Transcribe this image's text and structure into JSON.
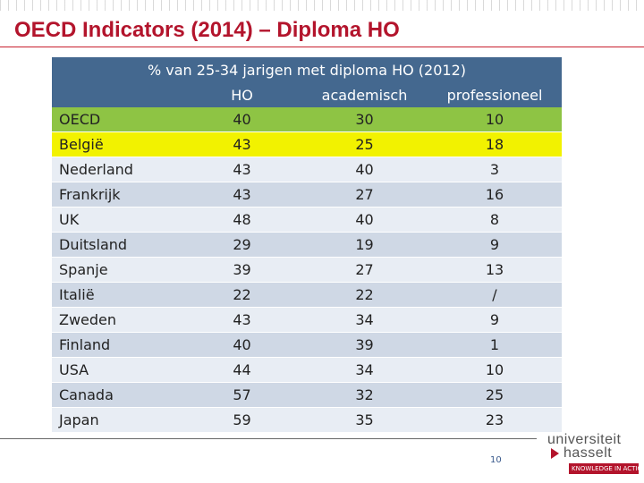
{
  "slide": {
    "title": "OECD Indicators (2014) – Diploma HO",
    "page_number": "10"
  },
  "table": {
    "caption": "% van 25-34 jarigen met diploma HO (2012)",
    "headers": [
      "",
      "HO",
      "academisch",
      "professioneel"
    ],
    "rows": [
      {
        "country": "OECD",
        "ho": "40",
        "academisch": "30",
        "professioneel": "10",
        "highlight": "#8ec444"
      },
      {
        "country": "België",
        "ho": "43",
        "academisch": "25",
        "professioneel": "18",
        "highlight": "#f2f200"
      },
      {
        "country": "Nederland",
        "ho": "43",
        "academisch": "40",
        "professioneel": "3"
      },
      {
        "country": "Frankrijk",
        "ho": "43",
        "academisch": "27",
        "professioneel": "16"
      },
      {
        "country": "UK",
        "ho": "48",
        "academisch": "40",
        "professioneel": "8"
      },
      {
        "country": "Duitsland",
        "ho": "29",
        "academisch": "19",
        "professioneel": "9"
      },
      {
        "country": "Spanje",
        "ho": "39",
        "academisch": "27",
        "professioneel": "13"
      },
      {
        "country": "Italië",
        "ho": "22",
        "academisch": "22",
        "professioneel": "/"
      },
      {
        "country": "Zweden",
        "ho": "43",
        "academisch": "34",
        "professioneel": "9"
      },
      {
        "country": "Finland",
        "ho": "40",
        "academisch": "39",
        "professioneel": "1"
      },
      {
        "country": "USA",
        "ho": "44",
        "academisch": "34",
        "professioneel": "10"
      },
      {
        "country": "Canada",
        "ho": "57",
        "academisch": "32",
        "professioneel": "25"
      },
      {
        "country": "Japan",
        "ho": "59",
        "academisch": "35",
        "professioneel": "23"
      }
    ]
  },
  "logo": {
    "line1": "universiteit",
    "line2": "hasselt",
    "tagline": "KNOWLEDGE IN ACTION"
  },
  "colors": {
    "title": "#b3142c",
    "header_bg": "#44688f",
    "oecd_row": "#8ec444",
    "belgie_row": "#f2f200"
  }
}
